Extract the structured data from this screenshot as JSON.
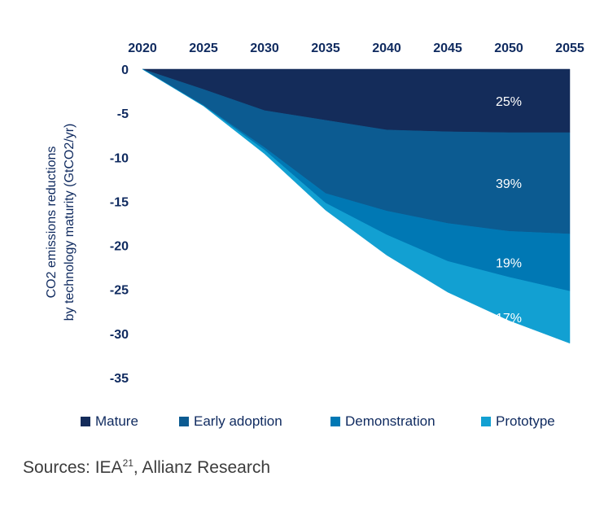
{
  "chart_data": {
    "type": "area",
    "x": [
      2020,
      2025,
      2030,
      2035,
      2040,
      2045,
      2050,
      2055
    ],
    "x_tick_labels": [
      "2020",
      "2025",
      "2030",
      "2035",
      "2040",
      "2045",
      "2050",
      "2055"
    ],
    "y_tick_labels": [
      "0",
      "-5",
      "-10",
      "-15",
      "-20",
      "-25",
      "-30",
      "-35"
    ],
    "ylim": [
      -35,
      0
    ],
    "xlim": [
      2020,
      2055
    ],
    "ylabel_line1": "CO2 emissions reductions",
    "ylabel_line2": "by technology maturity (GtCO2/yr)",
    "x_axis_position": "top",
    "grid": false,
    "stacked": true,
    "series": [
      {
        "name": "Mature",
        "values": [
          0,
          -2.3,
          -4.7,
          -5.8,
          -6.9,
          -7.1,
          -7.2,
          -7.2
        ],
        "share_label": "25%",
        "color": "#142c5a"
      },
      {
        "name": "Early adoption",
        "values": [
          0,
          -1.8,
          -4.2,
          -8.3,
          -9.2,
          -10.4,
          -11.2,
          -11.5
        ],
        "share_label": "39%",
        "color": "#0c5b91"
      },
      {
        "name": "Demonstration",
        "values": [
          0,
          -0.05,
          -0.3,
          -1.1,
          -2.7,
          -4.3,
          -5.2,
          -6.5
        ],
        "share_label": "19%",
        "color": "#0078b4"
      },
      {
        "name": "Prototype",
        "values": [
          0,
          -0.03,
          -0.4,
          -0.8,
          -2.3,
          -3.5,
          -4.9,
          -5.9
        ],
        "share_label": "17%",
        "color": "#12a0d2"
      }
    ]
  },
  "source_text": "Sources: IEA",
  "source_superscript": "21",
  "source_suffix": ", Allianz Research"
}
